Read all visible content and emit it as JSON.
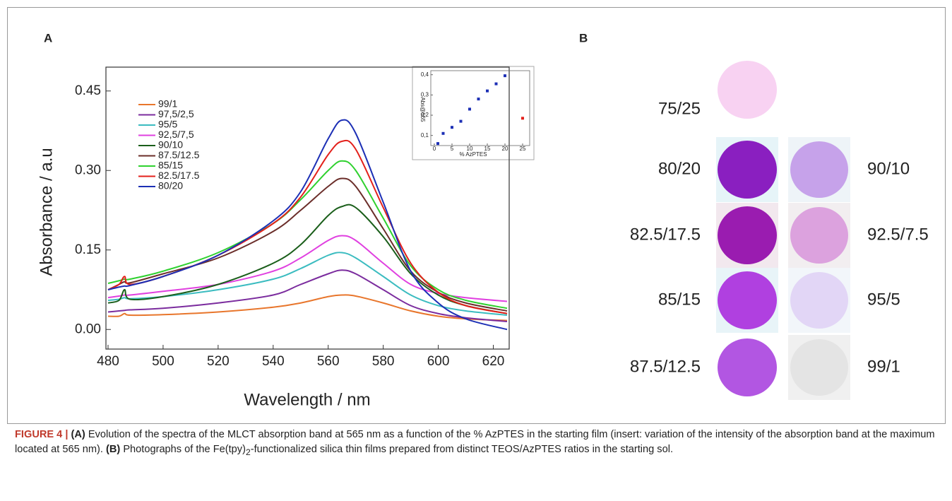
{
  "chart_data": [
    {
      "type": "line",
      "panel": "A",
      "ylabel": "Absorbance / a.u",
      "xlabel": "Wavelength / nm",
      "x": [
        480,
        484,
        486,
        488,
        500,
        520,
        540,
        550,
        560,
        565,
        570,
        580,
        590,
        600,
        610,
        625
      ],
      "xlim": [
        480,
        625
      ],
      "xticks": [
        480,
        500,
        520,
        540,
        560,
        580,
        600,
        620
      ],
      "ylim": [
        -0.037,
        0.495
      ],
      "yticks": [
        {
          "value": 0,
          "label": "0.00"
        },
        0.15,
        {
          "value": 0.3,
          "label": "0.30"
        },
        0.45
      ],
      "series": [
        {
          "name": "99/1",
          "color": "#e8762c",
          "values": [
            0.025,
            0.025,
            0.03,
            0.027,
            0.028,
            0.033,
            0.042,
            0.05,
            0.062,
            0.065,
            0.063,
            0.05,
            0.035,
            0.025,
            0.02,
            0.017
          ]
        },
        {
          "name": "97,5/2,5",
          "color": "#7b2c9e",
          "values": [
            0.033,
            0.035,
            0.036,
            0.037,
            0.04,
            0.05,
            0.065,
            0.085,
            0.105,
            0.112,
            0.105,
            0.075,
            0.045,
            0.03,
            0.022,
            0.015
          ]
        },
        {
          "name": "95/5",
          "color": "#3bbcc0",
          "values": [
            0.055,
            0.057,
            0.06,
            0.058,
            0.062,
            0.075,
            0.095,
            0.115,
            0.14,
            0.145,
            0.135,
            0.1,
            0.065,
            0.045,
            0.035,
            0.027
          ]
        },
        {
          "name": "92,5/7,5",
          "color": "#e040e0",
          "values": [
            0.06,
            0.063,
            0.065,
            0.065,
            0.072,
            0.085,
            0.11,
            0.135,
            0.168,
            0.177,
            0.168,
            0.125,
            0.085,
            0.068,
            0.06,
            0.053
          ]
        },
        {
          "name": "90/10",
          "color": "#1a5e1a",
          "values": [
            0.05,
            0.055,
            0.075,
            0.057,
            0.062,
            0.085,
            0.125,
            0.16,
            0.215,
            0.232,
            0.23,
            0.175,
            0.105,
            0.065,
            0.045,
            0.03
          ]
        },
        {
          "name": "87.5/12.5",
          "color": "#6b2e2a",
          "values": [
            0.075,
            0.085,
            0.09,
            0.088,
            0.105,
            0.135,
            0.185,
            0.225,
            0.27,
            0.285,
            0.27,
            0.19,
            0.11,
            0.07,
            0.05,
            0.035
          ]
        },
        {
          "name": "85/15",
          "color": "#2fd12f",
          "values": [
            0.087,
            0.092,
            0.095,
            0.095,
            0.11,
            0.145,
            0.2,
            0.245,
            0.3,
            0.318,
            0.3,
            0.21,
            0.12,
            0.075,
            0.055,
            0.04
          ]
        },
        {
          "name": "82.5/17.5",
          "color": "#e3201b",
          "values": [
            0.075,
            0.085,
            0.1,
            0.085,
            0.1,
            0.14,
            0.2,
            0.25,
            0.33,
            0.355,
            0.34,
            0.23,
            0.125,
            0.07,
            0.045,
            0.03
          ]
        },
        {
          "name": "80/20",
          "color": "#1c2fb5",
          "values": [
            0.075,
            0.08,
            0.082,
            0.083,
            0.1,
            0.14,
            0.205,
            0.26,
            0.36,
            0.395,
            0.37,
            0.24,
            0.11,
            0.05,
            0.02,
            0.0
          ]
        }
      ]
    },
    {
      "type": "scatter",
      "ylabel": "Abs@565",
      "xlabel": "% AzPTES",
      "xlim": [
        -1,
        27
      ],
      "xticks": [
        0,
        5,
        10,
        15,
        20,
        25
      ],
      "ylim": [
        0.05,
        0.42
      ],
      "yticks": [
        {
          "value": 0.1,
          "label": "0,1"
        },
        {
          "value": 0.2,
          "label": "0,2"
        },
        {
          "value": 0.3,
          "label": "0,3"
        },
        {
          "value": 0.4,
          "label": "0,4"
        }
      ],
      "series": [
        {
          "color": "#1c2fb5",
          "x": [
            1,
            2.5,
            5,
            7.5,
            10,
            12.5,
            15,
            17.5,
            20
          ],
          "values": [
            0.06,
            0.11,
            0.14,
            0.17,
            0.23,
            0.28,
            0.32,
            0.355,
            0.395
          ]
        },
        {
          "color": "#e3201b",
          "x": [
            25
          ],
          "values": [
            0.185
          ]
        }
      ]
    }
  ],
  "panel_b": {
    "label": "B",
    "rows": [
      {
        "left": "75/25"
      },
      {
        "left": "80/20",
        "right": "90/10"
      },
      {
        "left": "82.5/17.5",
        "right": "92.5/7.5"
      },
      {
        "left": "85/15",
        "right": "95/5"
      },
      {
        "left": "87.5/12.5",
        "right": "99/1"
      }
    ]
  },
  "caption": {
    "figure": "FIGURE 4 |",
    "a_label": "(A)",
    "a_text": "Evolution of the spectra of the MLCT absorption band at 565 nm as a function of the % AzPTES in the starting film (insert: variation of the intensity of the absorption band at the maximum located at 565 nm).",
    "b_label": "(B)",
    "b_text_1": "Photographs of the Fe(tpy)",
    "b_sub": "2",
    "b_text_2": "-functionalized silica thin films prepared from distinct TEOS/AzPTES ratios in the starting sol."
  }
}
